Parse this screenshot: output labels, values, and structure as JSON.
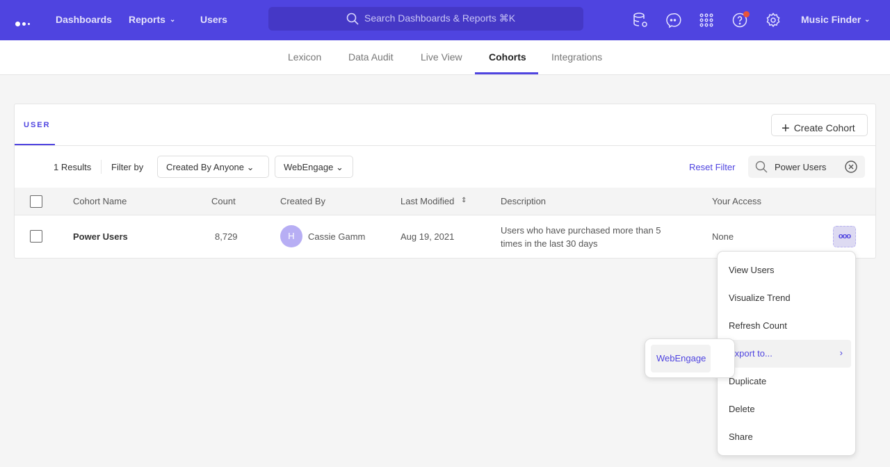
{
  "topbar": {
    "nav": [
      "Dashboards",
      "Reports",
      "Users"
    ],
    "search_placeholder": "Search Dashboards & Reports ⌘K",
    "project": "Music Finder",
    "accent": "#4f44e0",
    "icons": [
      "database-settings-icon",
      "chat-icon",
      "apps-grid-icon",
      "help-icon",
      "gear-icon"
    ]
  },
  "subnav": {
    "tabs": [
      "Lexicon",
      "Data Audit",
      "Live View",
      "Cohorts",
      "Integrations"
    ],
    "active": "Cohorts"
  },
  "card": {
    "tab": "USER",
    "create_label": "Create Cohort",
    "results": "1 Results",
    "filter_by": "Filter by",
    "filter_created": "Created By Anyone",
    "filter_integration": "WebEngage",
    "reset": "Reset Filter",
    "search_value": "Power Users",
    "columns": [
      "Cohort Name",
      "Count",
      "Created By",
      "Last Modified",
      "Description",
      "Your Access"
    ],
    "rows": [
      {
        "name": "Power Users",
        "count": "8,729",
        "avatar": "H",
        "created_by": "Cassie Gamm",
        "modified": "Aug 19, 2021",
        "description": "Users who have purchased more than 5 times in the last 30 days",
        "access": "None"
      }
    ]
  },
  "menu": {
    "items": [
      "View Users",
      "Visualize Trend",
      "Refresh Count",
      "Export to...",
      "Duplicate",
      "Delete",
      "Share"
    ],
    "highlighted": "Export to...",
    "submenu": [
      "WebEngage"
    ]
  }
}
